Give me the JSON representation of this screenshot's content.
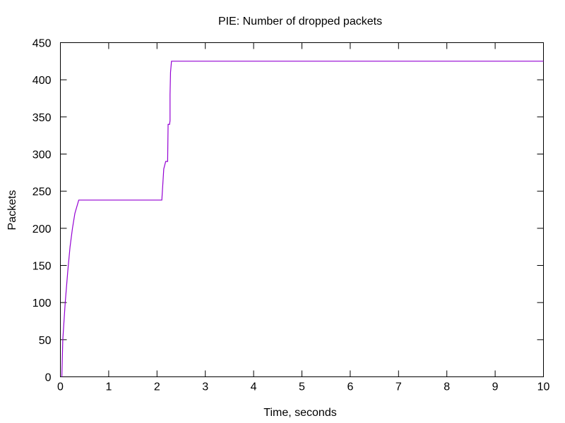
{
  "chart_data": {
    "type": "line",
    "title": "PIE: Number of dropped packets",
    "xlabel": "Time, seconds",
    "ylabel": "Packets",
    "xlim": [
      0,
      10
    ],
    "ylim": [
      0,
      450
    ],
    "x_ticks": [
      0,
      1,
      2,
      3,
      4,
      5,
      6,
      7,
      8,
      9,
      10
    ],
    "y_ticks": [
      0,
      50,
      100,
      150,
      200,
      250,
      300,
      350,
      400,
      450
    ],
    "grid": false,
    "legend": "none",
    "series": [
      {
        "color": "#9400d3",
        "x": [
          0.03,
          0.05,
          0.1,
          0.15,
          0.2,
          0.25,
          0.3,
          0.38,
          2.1,
          2.14,
          2.18,
          2.22,
          2.23,
          2.24,
          2.26,
          2.27,
          2.27,
          2.28,
          2.3,
          10
        ],
        "y": [
          0,
          50,
          100,
          140,
          175,
          200,
          220,
          238,
          238,
          280,
          290,
          290,
          340,
          340,
          340,
          345,
          380,
          410,
          425,
          425
        ]
      }
    ]
  }
}
